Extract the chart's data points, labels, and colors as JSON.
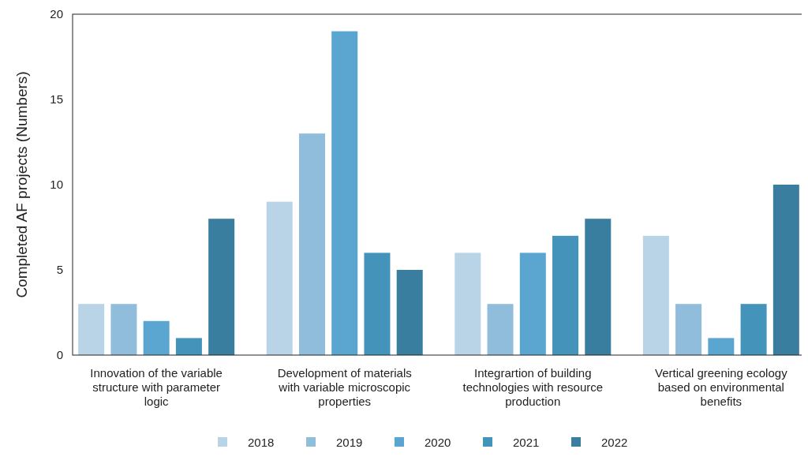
{
  "chart_data": {
    "type": "bar",
    "ylabel": "Completed AF projects (Numbers)",
    "categories": [
      "Innovation of the variable structure with parameter logic",
      "Development of materials with variable microscopic properties",
      "Integrartion of building technologies with resource production",
      "Vertical greening ecology based on environmental benefits"
    ],
    "series": [
      {
        "name": "2018",
        "color": "#b9d4e6",
        "values": [
          3,
          9,
          6,
          7
        ]
      },
      {
        "name": "2019",
        "color": "#8fbddb",
        "values": [
          3,
          13,
          3,
          3
        ]
      },
      {
        "name": "2020",
        "color": "#5aa6d0",
        "values": [
          2,
          19,
          6,
          1
        ]
      },
      {
        "name": "2021",
        "color": "#4393ba",
        "values": [
          1,
          6,
          7,
          3
        ]
      },
      {
        "name": "2022",
        "color": "#3a7e9f",
        "values": [
          8,
          5,
          8,
          10
        ]
      }
    ],
    "ylim": [
      0,
      20
    ],
    "yticks": [
      0,
      5,
      10,
      15,
      20
    ],
    "grid": false,
    "legend": "bottom"
  }
}
